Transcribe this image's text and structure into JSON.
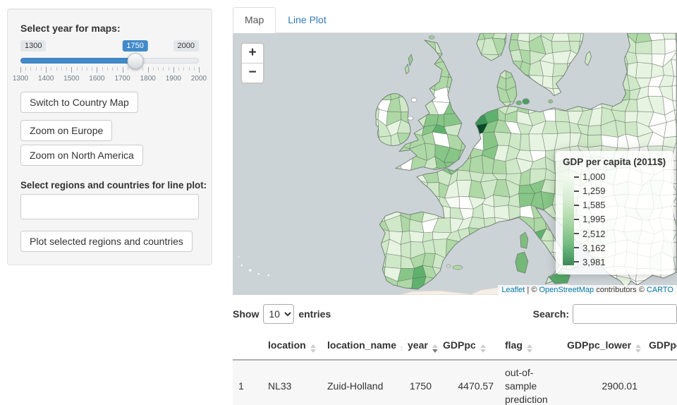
{
  "sidebar": {
    "year_label": "Select year for maps:",
    "slider": {
      "min": "1300",
      "max": "2000",
      "value": "1750",
      "min_num": 1300,
      "max_num": 2000,
      "value_num": 1750,
      "ticks": [
        "1300",
        "1400",
        "1500",
        "1600",
        "1700",
        "1800",
        "1900",
        "2000"
      ]
    },
    "switch_button": "Switch to Country Map",
    "zoom_europe_button": "Zoom on Europe",
    "zoom_na_button": "Zoom on North America",
    "select_label": "Select regions and countries for line plot:",
    "select_value": "",
    "plot_button": "Plot selected regions and countries"
  },
  "tabs": {
    "map": "Map",
    "line_plot": "Line Plot"
  },
  "map": {
    "zoom_in": "+",
    "zoom_out": "−",
    "legend": {
      "title": "GDP per capita (2011$)",
      "ticks": [
        "1,000",
        "1,259",
        "1,585",
        "1,995",
        "2,512",
        "3,162",
        "3,981"
      ]
    },
    "attribution": {
      "leaflet": "Leaflet",
      "sep1": " | © ",
      "osm": "OpenStreetMap",
      "sep2": " contributors © ",
      "carto": "CARTO"
    },
    "colors": {
      "sea": "#ccd3d6",
      "accent": "#428bca",
      "link": "#337ab7"
    },
    "palette": [
      "#f7fbf4",
      "#e7f4e1",
      "#cfe8c7",
      "#aed8a5",
      "#87c687",
      "#5fb16e",
      "#3a9557",
      "#20793f",
      "#0b4a26"
    ]
  },
  "table": {
    "show_label": "Show",
    "page_length": "10",
    "entries_label": "entries",
    "search_label": "Search:",
    "search_value": "",
    "columns": [
      "location",
      "location_name",
      "year",
      "GDPpc",
      "flag",
      "GDPpc_lower",
      "GDPpc_upper"
    ],
    "sort": {
      "column": "year",
      "direction": "desc"
    },
    "rows": [
      {
        "index": "1",
        "values": {
          "location": "NL33",
          "location_name": "Zuid-Holland",
          "year": "1750",
          "GDPpc": "4470.57",
          "flag": "out-of-sample prediction",
          "GDPpc_lower": "2900.01",
          "GDPpc_upper": ""
        }
      }
    ]
  }
}
